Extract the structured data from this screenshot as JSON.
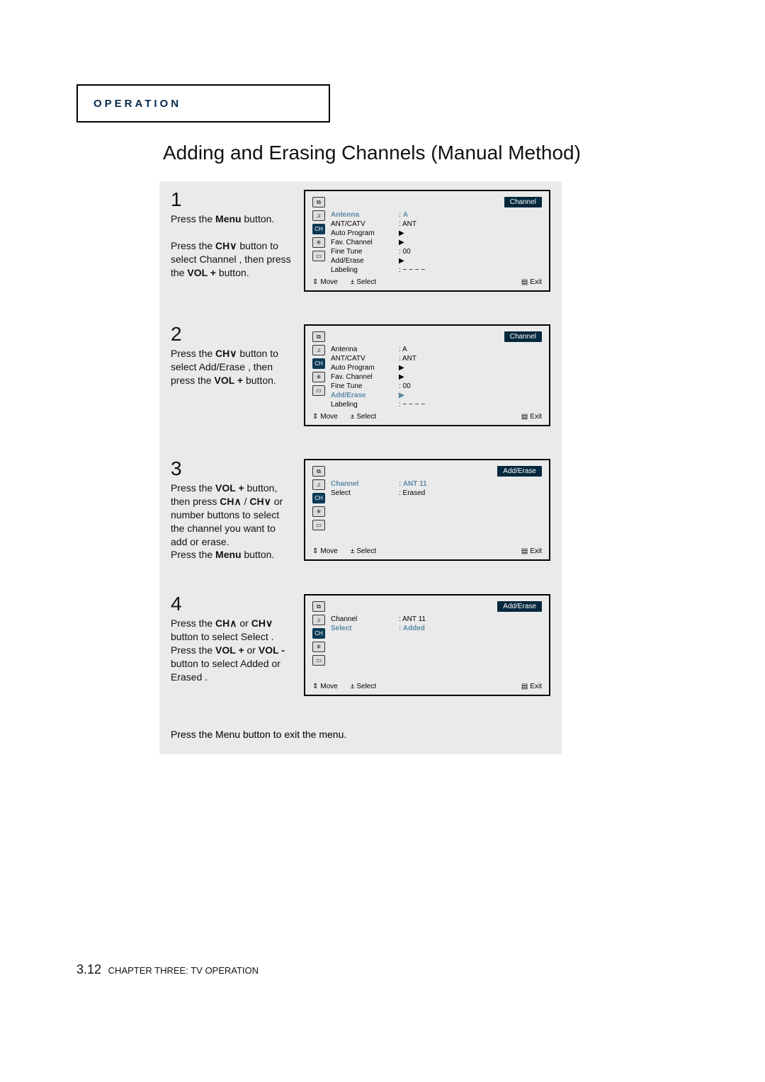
{
  "operation_label": "OPERATION",
  "title": "Adding and Erasing Channels (Manual Method)",
  "footer": {
    "page": "3.12",
    "text": "CHAPTER THREE: TV OPERATION"
  },
  "osd_footer": {
    "move": "Move",
    "select": "Select",
    "exit": "Exit"
  },
  "nav_icons": [
    "⧉",
    "♫",
    "CH",
    "⁜",
    "▭"
  ],
  "arrow": "▶",
  "steps": [
    {
      "num": "1",
      "text_segments": [
        {
          "t": "Press the ",
          "b": false
        },
        {
          "t": "Menu",
          "b": true
        },
        {
          "t": " button.",
          "b": false
        },
        {
          "t": "\n\n",
          "b": false
        },
        {
          "t": "Press the ",
          "b": false
        },
        {
          "t": "CH∨",
          "b": true
        },
        {
          "t": " button to select  Channel , then press the ",
          "b": false
        },
        {
          "t": "VOL +",
          "b": true
        },
        {
          "t": " button.",
          "b": false
        }
      ],
      "osd": {
        "title": "Channel",
        "highlight_index": 0,
        "rows": [
          {
            "label": "Antenna",
            "value": ": A"
          },
          {
            "label": "ANT/CATV",
            "value": ": ANT"
          },
          {
            "label": "Auto Program",
            "value": "▶"
          },
          {
            "label": "Fav. Channel",
            "value": "▶"
          },
          {
            "label": "Fine Tune",
            "value": ": 00"
          },
          {
            "label": "Add/Erase",
            "value": "▶"
          },
          {
            "label": "Labeling",
            "value": ": − − − −"
          }
        ],
        "sel_icon": 2
      }
    },
    {
      "num": "2",
      "text_segments": [
        {
          "t": "Press the ",
          "b": false
        },
        {
          "t": "CH∨",
          "b": true
        },
        {
          "t": " button to select  Add/Erase , then press the ",
          "b": false
        },
        {
          "t": "VOL +",
          "b": true
        },
        {
          "t": " button.",
          "b": false
        }
      ],
      "osd": {
        "title": "Channel",
        "highlight_index": 5,
        "rows": [
          {
            "label": "Antenna",
            "value": ": A"
          },
          {
            "label": "ANT/CATV",
            "value": ": ANT"
          },
          {
            "label": "Auto Program",
            "value": "▶"
          },
          {
            "label": "Fav. Channel",
            "value": "▶"
          },
          {
            "label": "Fine Tune",
            "value": ": 00"
          },
          {
            "label": "Add/Erase",
            "value": "▶"
          },
          {
            "label": "Labeling",
            "value": ": − − − −"
          }
        ],
        "sel_icon": 2
      }
    },
    {
      "num": "3",
      "text_segments": [
        {
          "t": "Press the ",
          "b": false
        },
        {
          "t": "VOL +",
          "b": true
        },
        {
          "t": " button, then press ",
          "b": false
        },
        {
          "t": "CH∧",
          "b": true
        },
        {
          "t": " / ",
          "b": false
        },
        {
          "t": "CH∨",
          "b": true
        },
        {
          "t": " or number buttons to select the channel you want to add or erase.\nPress the ",
          "b": false
        },
        {
          "t": "Menu",
          "b": true
        },
        {
          "t": " button.",
          "b": false
        }
      ],
      "osd": {
        "title": "Add/Erase",
        "highlight_index": 0,
        "rows": [
          {
            "label": "Channel",
            "value": ": ANT 11"
          },
          {
            "label": "Select",
            "value": ": Erased"
          }
        ],
        "sel_icon": 2
      }
    },
    {
      "num": "4",
      "text_segments": [
        {
          "t": "Press the ",
          "b": false
        },
        {
          "t": "CH∧",
          "b": true
        },
        {
          "t": " or ",
          "b": false
        },
        {
          "t": "CH∨",
          "b": true
        },
        {
          "t": " button to select  Select .\nPress the ",
          "b": false
        },
        {
          "t": "VOL +",
          "b": true
        },
        {
          "t": " or ",
          "b": false
        },
        {
          "t": "VOL -",
          "b": true
        },
        {
          "t": " button to select  Added or  Erased .",
          "b": false
        }
      ],
      "osd": {
        "title": "Add/Erase",
        "highlight_index": 1,
        "rows": [
          {
            "label": "Channel",
            "value": ": ANT 11"
          },
          {
            "label": "Select",
            "value": ": Added"
          }
        ],
        "sel_icon": 2
      }
    }
  ],
  "exit_text_segments": [
    {
      "t": "Press the ",
      "b": false
    },
    {
      "t": "Menu",
      "b": true
    },
    {
      "t": " button to exit the menu.",
      "b": false
    }
  ]
}
